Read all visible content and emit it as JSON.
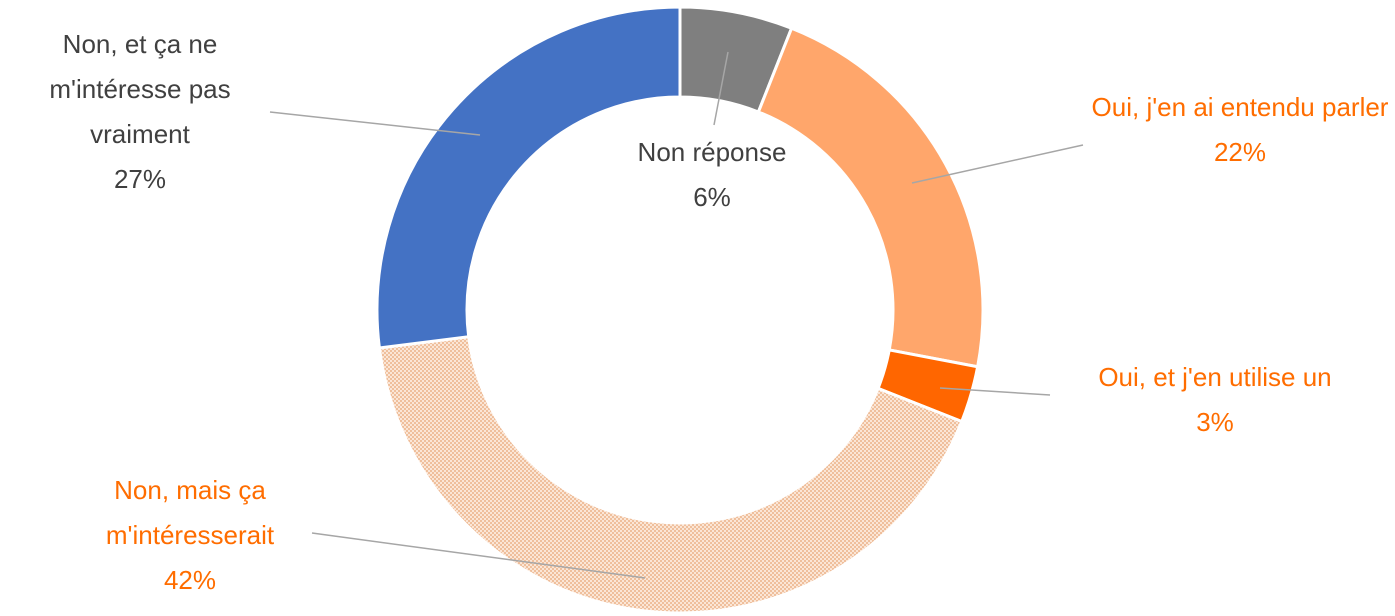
{
  "chart_data": {
    "type": "donut",
    "categories": [
      "Non réponse",
      "Oui, j'en ai entendu parler",
      "Oui, et j'en utilise un",
      "Non, mais ça m'intéresserait",
      "Non, et ça ne m'intéresse pas vraiment"
    ],
    "values": [
      6,
      22,
      3,
      42,
      27
    ],
    "value_labels": [
      "6%",
      "22%",
      "3%",
      "42%",
      "27%"
    ],
    "colors": [
      "#7f7f7f",
      "#ffa66b",
      "#ff6600",
      "pattern",
      "#4472c4"
    ],
    "label_colors": [
      "#404040",
      "#ff6d00",
      "#ff6d00",
      "#ff6d00",
      "#404040"
    ]
  }
}
